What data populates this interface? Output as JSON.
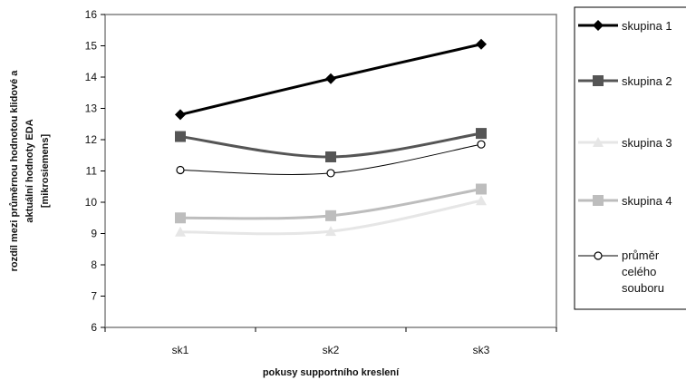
{
  "chart_data": {
    "type": "line",
    "categories": [
      "sk1",
      "sk2",
      "sk3"
    ],
    "series": [
      {
        "name": "skupina 1",
        "values": [
          12.8,
          13.95,
          15.05
        ],
        "color": "#000000",
        "marker": "diamond"
      },
      {
        "name": "skupina 2",
        "values": [
          12.1,
          11.45,
          12.2
        ],
        "color": "#555555",
        "marker": "square"
      },
      {
        "name": "skupina 3",
        "values": [
          9.05,
          9.07,
          10.05
        ],
        "color": "#e6e6e6",
        "marker": "triangle"
      },
      {
        "name": "skupina 4",
        "values": [
          9.5,
          9.57,
          10.42
        ],
        "color": "#bdbdbd",
        "marker": "square"
      },
      {
        "name": "průměr celého souboru",
        "name_lines": [
          "průměr",
          "celého",
          "souboru"
        ],
        "values": [
          11.03,
          10.93,
          11.85
        ],
        "color": "#000000",
        "marker": "circle-open"
      }
    ],
    "xlabel": "pokusy supportního kreslení",
    "ylabel_lines": [
      "rozdíl mezi průměrnou hodnotou  klidové  a",
      "aktuální hodnoty EDA",
      "[mikrosiemens]"
    ],
    "yticks": [
      6,
      7,
      8,
      9,
      10,
      11,
      12,
      13,
      14,
      15,
      16
    ],
    "ylim": [
      6,
      16
    ],
    "grid": false,
    "legend_position": "right"
  }
}
